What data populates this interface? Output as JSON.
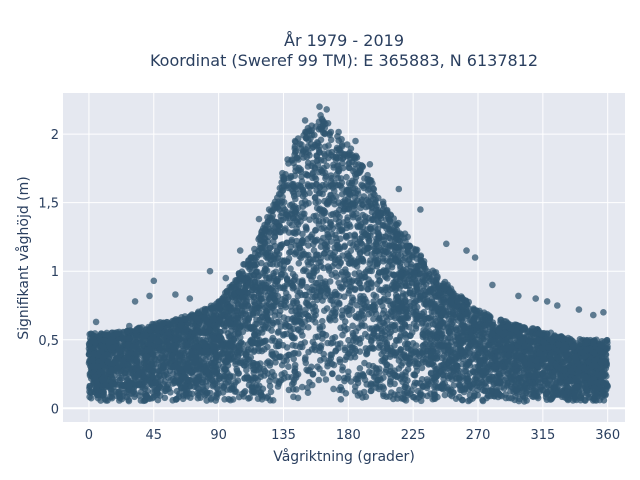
{
  "chart_data": {
    "type": "scatter",
    "title_line1": "År 1979 - 2019",
    "title_line2": "Koordinat (Sweref 99 TM): E 365883, N 6137812",
    "xlabel": "Vågriktning (grader)",
    "ylabel": "Signifikant våghöjd (m)",
    "xlim": [
      -18,
      372
    ],
    "ylim": [
      -0.1,
      2.3
    ],
    "xticks": [
      0,
      45,
      90,
      135,
      180,
      225,
      270,
      315,
      360
    ],
    "xtick_labels": [
      "0",
      "45",
      "90",
      "135",
      "180",
      "225",
      "270",
      "315",
      "360"
    ],
    "yticks": [
      0,
      0.5,
      1,
      1.5,
      2
    ],
    "ytick_labels": [
      "0",
      "0,5",
      "1",
      "1,5",
      "2"
    ],
    "grid": true,
    "marker_color": "#2f5570",
    "background_color": "#e5e8f0",
    "series": [
      {
        "description_free": true,
        "envelope_x": [
          0,
          15,
          30,
          45,
          60,
          75,
          90,
          100,
          110,
          120,
          130,
          135,
          145,
          155,
          160,
          165,
          175,
          185,
          195,
          205,
          215,
          225,
          235,
          245,
          255,
          270,
          285,
          300,
          315,
          330,
          345,
          360
        ],
        "envelope_ymax": [
          0.55,
          0.55,
          0.58,
          0.62,
          0.65,
          0.7,
          0.78,
          0.92,
          1.1,
          1.3,
          1.55,
          1.75,
          2.0,
          2.1,
          2.15,
          2.1,
          2.0,
          1.85,
          1.68,
          1.5,
          1.35,
          1.2,
          1.05,
          0.95,
          0.85,
          0.72,
          0.65,
          0.6,
          0.57,
          0.52,
          0.5,
          0.5
        ],
        "envelope_ymin": 0.05,
        "outliers": [
          [
            5,
            0.63
          ],
          [
            28,
            0.6
          ],
          [
            32,
            0.78
          ],
          [
            42,
            0.82
          ],
          [
            45,
            0.93
          ],
          [
            60,
            0.83
          ],
          [
            70,
            0.8
          ],
          [
            84,
            1.0
          ],
          [
            95,
            0.95
          ],
          [
            105,
            1.15
          ],
          [
            118,
            1.38
          ],
          [
            125,
            1.45
          ],
          [
            150,
            2.1
          ],
          [
            160,
            2.2
          ],
          [
            165,
            2.18
          ],
          [
            185,
            1.95
          ],
          [
            195,
            1.78
          ],
          [
            215,
            1.6
          ],
          [
            230,
            1.45
          ],
          [
            248,
            1.2
          ],
          [
            262,
            1.15
          ],
          [
            268,
            1.1
          ],
          [
            280,
            0.9
          ],
          [
            298,
            0.82
          ],
          [
            310,
            0.8
          ],
          [
            318,
            0.78
          ],
          [
            325,
            0.75
          ],
          [
            340,
            0.72
          ],
          [
            350,
            0.68
          ],
          [
            357,
            0.7
          ]
        ]
      }
    ]
  }
}
